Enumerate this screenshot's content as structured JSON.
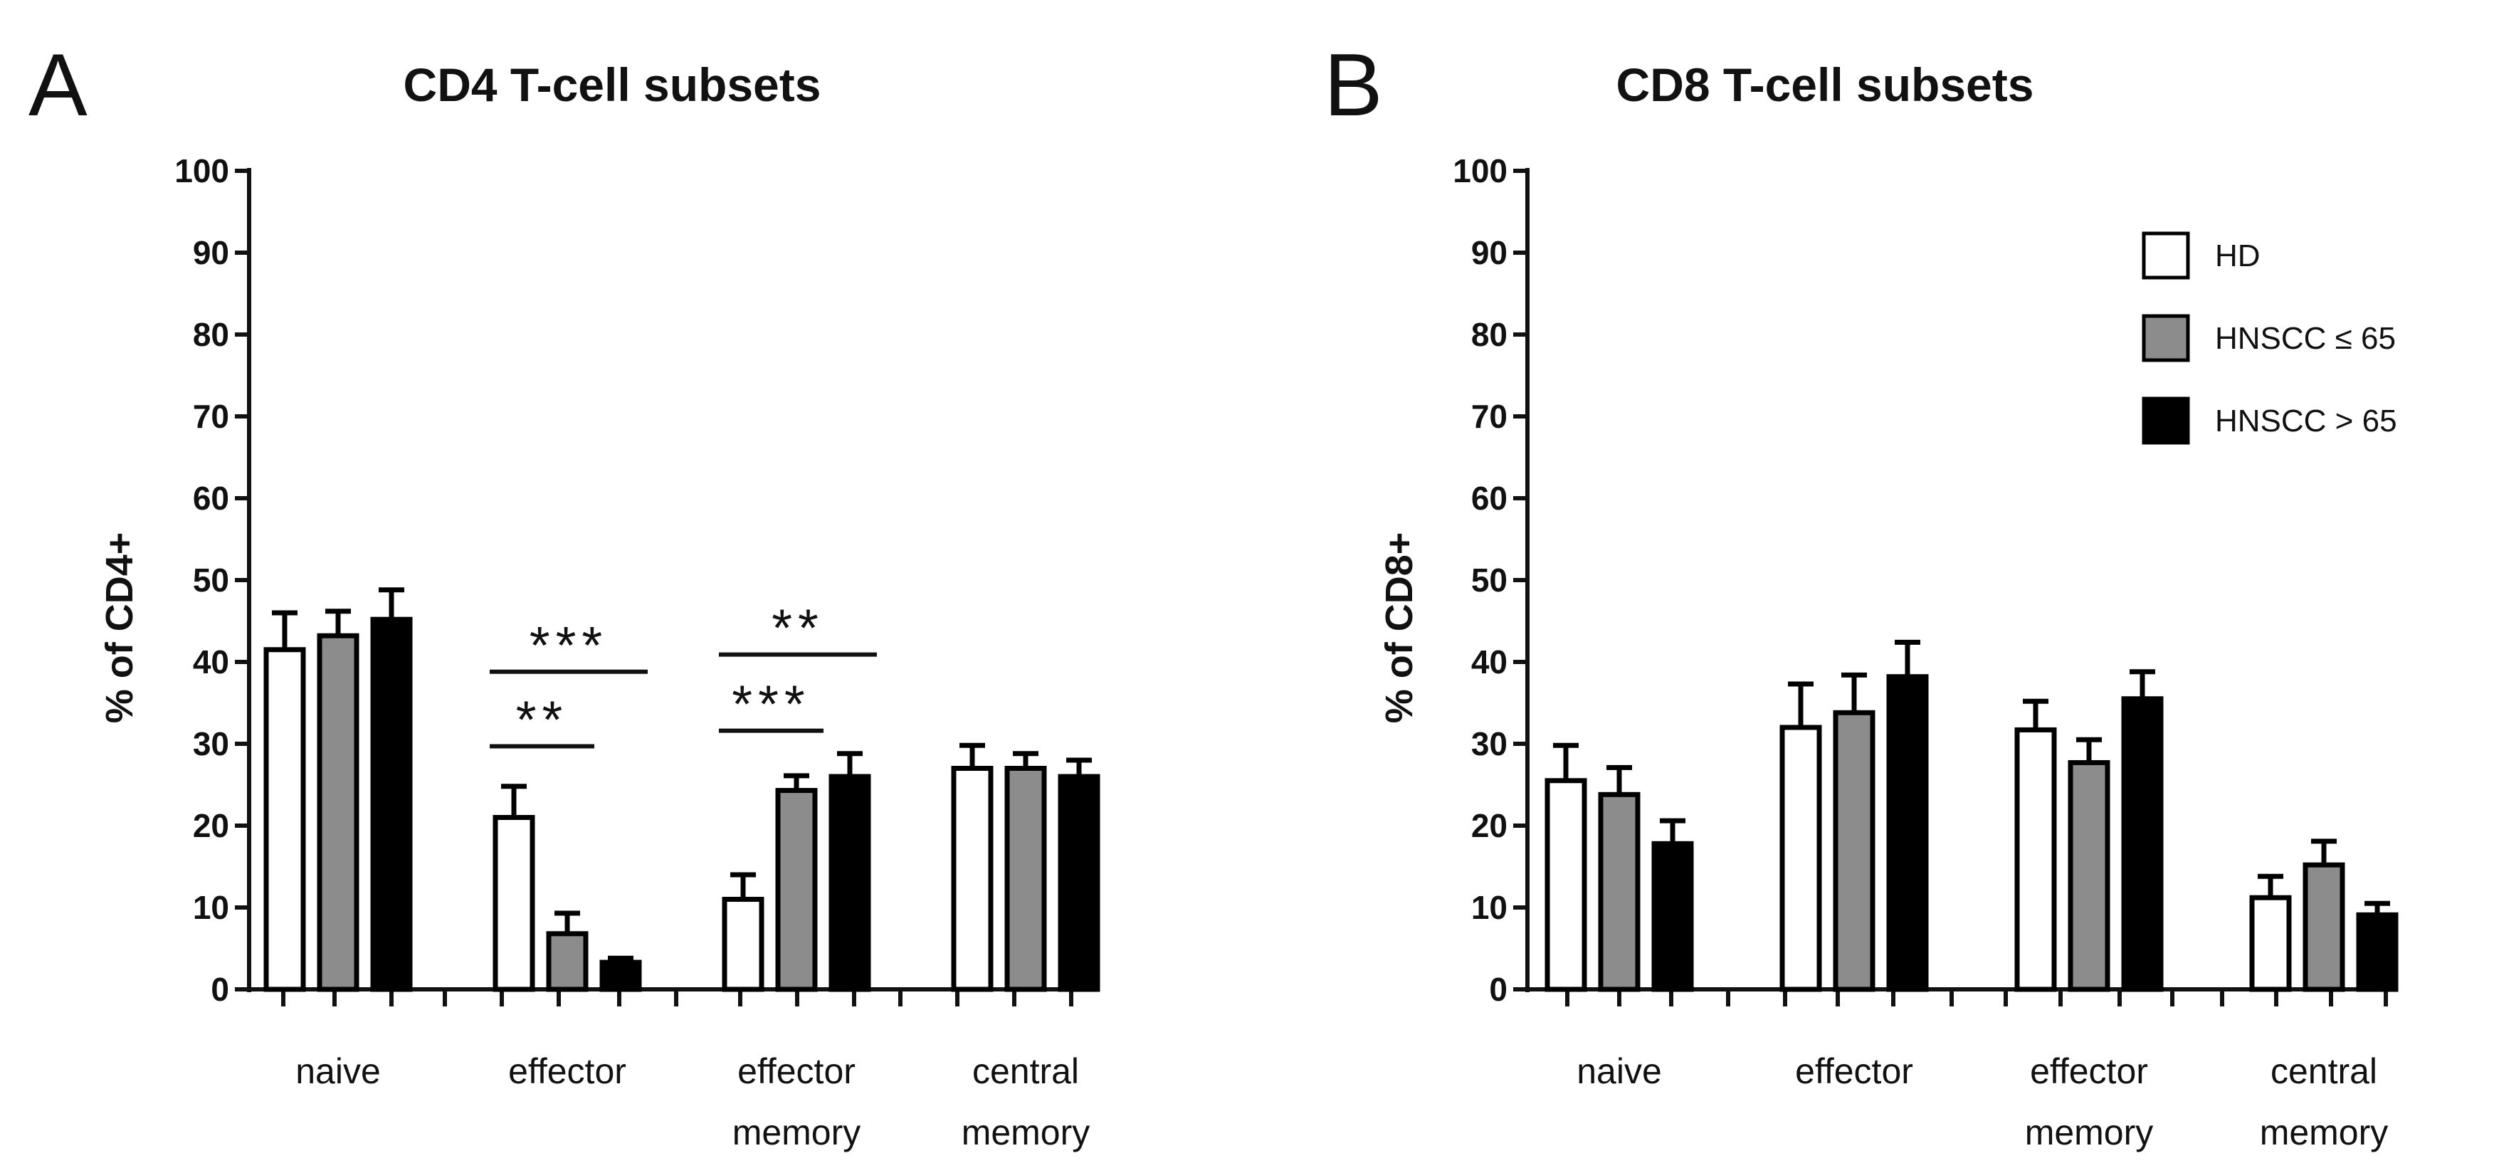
{
  "chart_data": [
    {
      "type": "bar",
      "panel": "A",
      "title": "CD4 T-cell subsets",
      "ylabel": "% of CD4+",
      "xlabel": "",
      "ylim": [
        0,
        100
      ],
      "yticks": [
        0,
        10,
        20,
        30,
        40,
        50,
        60,
        70,
        80,
        90,
        100
      ],
      "categories": [
        [
          "naive"
        ],
        [
          "effector"
        ],
        [
          "effector",
          "memory"
        ],
        [
          "central",
          "memory"
        ]
      ],
      "series": [
        {
          "name": "HD",
          "color": "#ffffff",
          "values": [
            41.5,
            21,
            11,
            27
          ],
          "errors": [
            4.5,
            3.8,
            3,
            2.8
          ]
        },
        {
          "name": "HNSCC ≤ 65",
          "color": "#8c8c8c",
          "values": [
            43.2,
            6.8,
            24.3,
            27
          ],
          "errors": [
            3,
            2.5,
            1.8,
            1.8
          ]
        },
        {
          "name": "HNSCC > 65",
          "color": "#000000",
          "values": [
            45.2,
            3.3,
            26,
            26
          ],
          "errors": [
            3.6,
            0.5,
            2.8,
            2
          ]
        }
      ],
      "significance": [
        {
          "category": 1,
          "from": 0,
          "to": 2,
          "y": 38.8,
          "label": "***"
        },
        {
          "category": 1,
          "from": 0,
          "to": 1,
          "y": 29.7,
          "label": "**"
        },
        {
          "category": 2,
          "from": 0,
          "to": 2,
          "y": 40.9,
          "label": "**"
        },
        {
          "category": 2,
          "from": 0,
          "to": 1,
          "y": 31.6,
          "label": "***"
        }
      ]
    },
    {
      "type": "bar",
      "panel": "B",
      "title": "CD8 T-cell subsets",
      "ylabel": "% of CD8+",
      "xlabel": "",
      "ylim": [
        0,
        100
      ],
      "yticks": [
        0,
        10,
        20,
        30,
        40,
        50,
        60,
        70,
        80,
        90,
        100
      ],
      "categories": [
        [
          "naive"
        ],
        [
          "effector"
        ],
        [
          "effector",
          "memory"
        ],
        [
          "central",
          "memory"
        ]
      ],
      "series": [
        {
          "name": "HD",
          "color": "#ffffff",
          "values": [
            25.5,
            32,
            31.7,
            11.2
          ],
          "errors": [
            4.3,
            5.3,
            3.5,
            2.6
          ]
        },
        {
          "name": "HNSCC ≤ 65",
          "color": "#8c8c8c",
          "values": [
            23.8,
            33.8,
            27.7,
            15.2
          ],
          "errors": [
            3.3,
            4.6,
            2.8,
            2.9
          ]
        },
        {
          "name": "HNSCC > 65",
          "color": "#000000",
          "values": [
            17.8,
            38.2,
            35.5,
            9.1
          ],
          "errors": [
            2.8,
            4.2,
            3.3,
            1.4
          ]
        }
      ],
      "legend": {
        "position": "top-right",
        "entries": [
          "HD",
          "HNSCC ≤ 65",
          "HNSCC > 65"
        ]
      },
      "significance": []
    }
  ]
}
